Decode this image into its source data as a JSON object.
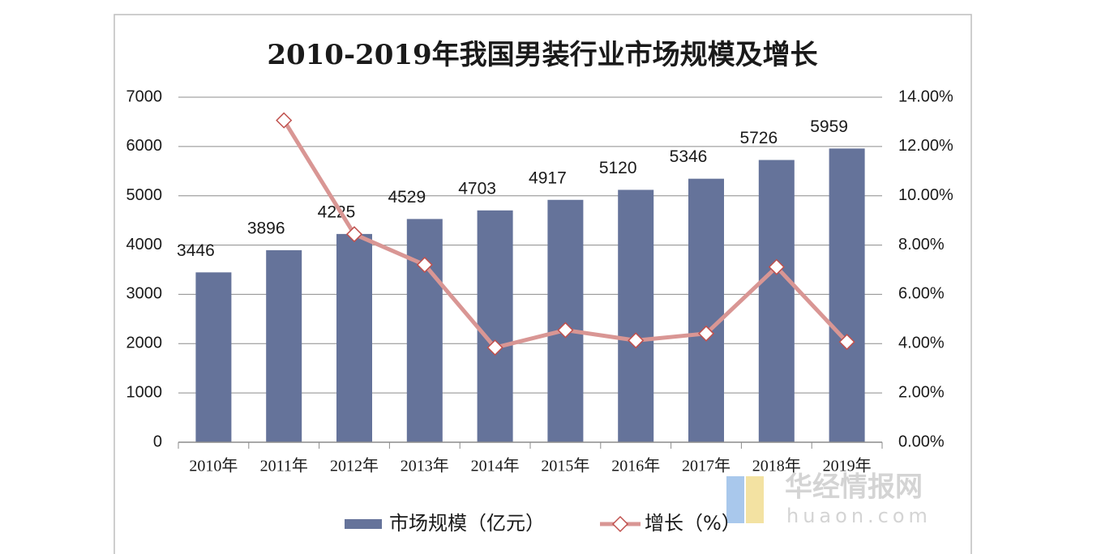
{
  "chart_data": {
    "type": "bar",
    "title": "2010-2019年我国男装行业市场规模及增长",
    "categories": [
      "2010年",
      "2011年",
      "2012年",
      "2013年",
      "2014年",
      "2015年",
      "2016年",
      "2017年",
      "2018年",
      "2019年"
    ],
    "series": [
      {
        "name": "市场规模（亿元）",
        "color": "#65739a",
        "values": [
          3446,
          3896,
          4225,
          4529,
          4703,
          4917,
          5120,
          5346,
          5726,
          5959
        ]
      },
      {
        "name": "增长（%）",
        "type": "line",
        "axis": "y2",
        "color": "#d99694",
        "values": [
          null,
          13.06,
          8.44,
          7.2,
          3.84,
          4.55,
          4.13,
          4.41,
          7.11,
          4.07
        ]
      }
    ],
    "ylim": [
      0,
      7000
    ],
    "yticks": [
      0,
      1000,
      2000,
      3000,
      4000,
      5000,
      6000,
      7000
    ],
    "y2lim": [
      0,
      14
    ],
    "y2ticks": [
      {
        "value": 0,
        "label": "0.00%"
      },
      {
        "value": 2,
        "label": "2.00%"
      },
      {
        "value": 4,
        "label": "4.00%"
      },
      {
        "value": 6,
        "label": "6.00%"
      },
      {
        "value": 8,
        "label": "8.00%"
      },
      {
        "value": 10,
        "label": "10.00%"
      },
      {
        "value": 12,
        "label": "12.00%"
      },
      {
        "value": 14,
        "label": "14.00%"
      }
    ],
    "grid": true,
    "watermark": {
      "name": "华经情报网",
      "url": "huaon.com"
    }
  }
}
